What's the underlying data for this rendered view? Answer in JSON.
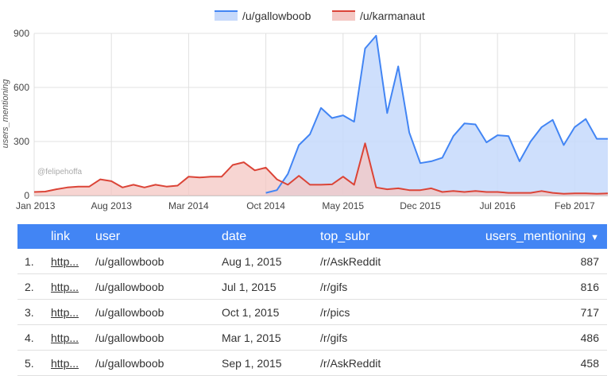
{
  "chart_data": {
    "type": "area",
    "x": [
      "2013-01",
      "2013-02",
      "2013-03",
      "2013-04",
      "2013-05",
      "2013-06",
      "2013-07",
      "2013-08",
      "2013-09",
      "2013-10",
      "2013-11",
      "2013-12",
      "2014-01",
      "2014-02",
      "2014-03",
      "2014-04",
      "2014-05",
      "2014-06",
      "2014-07",
      "2014-08",
      "2014-09",
      "2014-10",
      "2014-11",
      "2014-12",
      "2015-01",
      "2015-02",
      "2015-03",
      "2015-04",
      "2015-05",
      "2015-06",
      "2015-07",
      "2015-08",
      "2015-09",
      "2015-10",
      "2015-11",
      "2015-12",
      "2016-01",
      "2016-02",
      "2016-03",
      "2016-04",
      "2016-05",
      "2016-06",
      "2016-07",
      "2016-08",
      "2016-09",
      "2016-10",
      "2016-11",
      "2016-12",
      "2017-01",
      "2017-02",
      "2017-03",
      "2017-04",
      "2017-05"
    ],
    "series": [
      {
        "name": "/u/gallowboob",
        "color": "#4285f4",
        "fill": "#c6d9fb",
        "values": [
          null,
          null,
          null,
          null,
          null,
          null,
          null,
          null,
          null,
          null,
          null,
          null,
          null,
          null,
          null,
          null,
          null,
          null,
          null,
          null,
          null,
          15,
          30,
          120,
          280,
          340,
          486,
          430,
          445,
          410,
          816,
          887,
          458,
          717,
          350,
          180,
          190,
          210,
          330,
          400,
          395,
          295,
          335,
          330,
          190,
          300,
          380,
          420,
          280,
          380,
          425,
          315,
          315
        ]
      },
      {
        "name": "/u/karmanaut",
        "color": "#db4437",
        "fill": "#f4c7c3",
        "values": [
          20,
          22,
          35,
          45,
          50,
          50,
          90,
          80,
          45,
          60,
          45,
          60,
          50,
          55,
          105,
          100,
          105,
          105,
          170,
          185,
          140,
          155,
          90,
          60,
          110,
          60,
          60,
          62,
          105,
          60,
          290,
          45,
          35,
          40,
          30,
          30,
          40,
          20,
          25,
          20,
          25,
          20,
          20,
          15,
          15,
          15,
          25,
          15,
          10,
          12,
          12,
          10,
          12
        ]
      }
    ],
    "x_tick_labels": [
      "Jan 2013",
      "Aug 2013",
      "Mar 2014",
      "Oct 2014",
      "May 2015",
      "Dec 2015",
      "Jul 2016",
      "Feb 2017"
    ],
    "y_tick_labels": [
      "0",
      "300",
      "600",
      "900"
    ],
    "ylim": [
      0,
      900
    ],
    "ylabel": "users_mentioning",
    "xlabel": "",
    "grid": true,
    "legend_position": "top",
    "watermark": "@felipehoffa"
  },
  "table": {
    "headers": {
      "link": "link",
      "user": "user",
      "date": "date",
      "top_subr": "top_subr",
      "users_mentioning": "users_mentioning"
    },
    "sort_indicator": "▼",
    "rows": [
      {
        "num": "1.",
        "link": "http...",
        "user": "/u/gallowboob",
        "date": "Aug 1, 2015",
        "top_subr": "/r/AskReddit",
        "users_mentioning": "887"
      },
      {
        "num": "2.",
        "link": "http...",
        "user": "/u/gallowboob",
        "date": "Jul 1, 2015",
        "top_subr": "/r/gifs",
        "users_mentioning": "816"
      },
      {
        "num": "3.",
        "link": "http...",
        "user": "/u/gallowboob",
        "date": "Oct 1, 2015",
        "top_subr": "/r/pics",
        "users_mentioning": "717"
      },
      {
        "num": "4.",
        "link": "http...",
        "user": "/u/gallowboob",
        "date": "Mar 1, 2015",
        "top_subr": "/r/gifs",
        "users_mentioning": "486"
      },
      {
        "num": "5.",
        "link": "http...",
        "user": "/u/gallowboob",
        "date": "Sep 1, 2015",
        "top_subr": "/r/AskReddit",
        "users_mentioning": "458"
      }
    ]
  }
}
